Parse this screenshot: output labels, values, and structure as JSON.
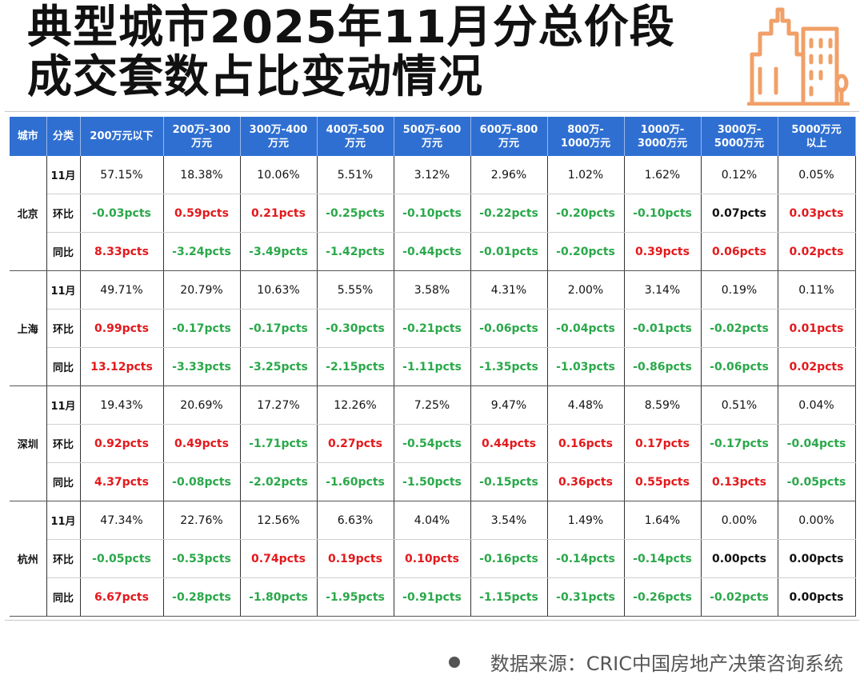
{
  "title": {
    "line1": "典型城市2025年11月分总价段",
    "line2": "成交套数占比变动情况"
  },
  "logo": {
    "icon": "buildings-icon",
    "color": "#f0a068"
  },
  "table": {
    "headers": [
      "城市",
      "分类",
      "200万元以下",
      "200万-300\n万元",
      "300万-400\n万元",
      "400万-500\n万元",
      "500万-600\n万元",
      "600万-800\n万元",
      "800万-\n1000万元",
      "1000万-\n3000万元",
      "3000万-\n5000万元",
      "5000万元\n以上"
    ],
    "colors": {
      "header_bg": "#2f6fd1",
      "up": "#e3191c",
      "down": "#2aa84a"
    },
    "cities": [
      {
        "name": "北京",
        "rows": [
          {
            "label": "11月",
            "cells": [
              {
                "v": "57.15%",
                "t": "plain"
              },
              {
                "v": "18.38%",
                "t": "plain"
              },
              {
                "v": "10.06%",
                "t": "plain"
              },
              {
                "v": "5.51%",
                "t": "plain"
              },
              {
                "v": "3.12%",
                "t": "plain"
              },
              {
                "v": "2.96%",
                "t": "plain"
              },
              {
                "v": "1.02%",
                "t": "plain"
              },
              {
                "v": "1.62%",
                "t": "plain"
              },
              {
                "v": "0.12%",
                "t": "plain"
              },
              {
                "v": "0.05%",
                "t": "plain"
              }
            ]
          },
          {
            "label": "环比",
            "cells": [
              {
                "v": "-0.03pcts",
                "t": "neg"
              },
              {
                "v": "0.59pcts",
                "t": "pos"
              },
              {
                "v": "0.21pcts",
                "t": "pos"
              },
              {
                "v": "-0.25pcts",
                "t": "neg"
              },
              {
                "v": "-0.10pcts",
                "t": "neg"
              },
              {
                "v": "-0.22pcts",
                "t": "neg"
              },
              {
                "v": "-0.20pcts",
                "t": "neg"
              },
              {
                "v": "-0.10pcts",
                "t": "neg"
              },
              {
                "v": "0.07pcts",
                "t": "neu"
              },
              {
                "v": "0.03pcts",
                "t": "pos"
              }
            ]
          },
          {
            "label": "同比",
            "cells": [
              {
                "v": "8.33pcts",
                "t": "pos"
              },
              {
                "v": "-3.24pcts",
                "t": "neg"
              },
              {
                "v": "-3.49pcts",
                "t": "neg"
              },
              {
                "v": "-1.42pcts",
                "t": "neg"
              },
              {
                "v": "-0.44pcts",
                "t": "neg"
              },
              {
                "v": "-0.01pcts",
                "t": "neg"
              },
              {
                "v": "-0.20pcts",
                "t": "neg"
              },
              {
                "v": "0.39pcts",
                "t": "pos"
              },
              {
                "v": "0.06pcts",
                "t": "pos"
              },
              {
                "v": "0.02pcts",
                "t": "pos"
              }
            ]
          }
        ]
      },
      {
        "name": "上海",
        "rows": [
          {
            "label": "11月",
            "cells": [
              {
                "v": "49.71%",
                "t": "plain"
              },
              {
                "v": "20.79%",
                "t": "plain"
              },
              {
                "v": "10.63%",
                "t": "plain"
              },
              {
                "v": "5.55%",
                "t": "plain"
              },
              {
                "v": "3.58%",
                "t": "plain"
              },
              {
                "v": "4.31%",
                "t": "plain"
              },
              {
                "v": "2.00%",
                "t": "plain"
              },
              {
                "v": "3.14%",
                "t": "plain"
              },
              {
                "v": "0.19%",
                "t": "plain"
              },
              {
                "v": "0.11%",
                "t": "plain"
              }
            ]
          },
          {
            "label": "环比",
            "cells": [
              {
                "v": "0.99pcts",
                "t": "pos"
              },
              {
                "v": "-0.17pcts",
                "t": "neg"
              },
              {
                "v": "-0.17pcts",
                "t": "neg"
              },
              {
                "v": "-0.30pcts",
                "t": "neg"
              },
              {
                "v": "-0.21pcts",
                "t": "neg"
              },
              {
                "v": "-0.06pcts",
                "t": "neg"
              },
              {
                "v": "-0.04pcts",
                "t": "neg"
              },
              {
                "v": "-0.01pcts",
                "t": "neg"
              },
              {
                "v": "-0.02pcts",
                "t": "neg"
              },
              {
                "v": "0.01pcts",
                "t": "pos"
              }
            ]
          },
          {
            "label": "同比",
            "cells": [
              {
                "v": "13.12pcts",
                "t": "pos"
              },
              {
                "v": "-3.33pcts",
                "t": "neg"
              },
              {
                "v": "-3.25pcts",
                "t": "neg"
              },
              {
                "v": "-2.15pcts",
                "t": "neg"
              },
              {
                "v": "-1.11pcts",
                "t": "neg"
              },
              {
                "v": "-1.35pcts",
                "t": "neg"
              },
              {
                "v": "-1.03pcts",
                "t": "neg"
              },
              {
                "v": "-0.86pcts",
                "t": "neg"
              },
              {
                "v": "-0.06pcts",
                "t": "neg"
              },
              {
                "v": "0.02pcts",
                "t": "pos"
              }
            ]
          }
        ]
      },
      {
        "name": "深圳",
        "rows": [
          {
            "label": "11月",
            "cells": [
              {
                "v": "19.43%",
                "t": "plain"
              },
              {
                "v": "20.69%",
                "t": "plain"
              },
              {
                "v": "17.27%",
                "t": "plain"
              },
              {
                "v": "12.26%",
                "t": "plain"
              },
              {
                "v": "7.25%",
                "t": "plain"
              },
              {
                "v": "9.47%",
                "t": "plain"
              },
              {
                "v": "4.48%",
                "t": "plain"
              },
              {
                "v": "8.59%",
                "t": "plain"
              },
              {
                "v": "0.51%",
                "t": "plain"
              },
              {
                "v": "0.04%",
                "t": "plain"
              }
            ]
          },
          {
            "label": "环比",
            "cells": [
              {
                "v": "0.92pcts",
                "t": "pos"
              },
              {
                "v": "0.49pcts",
                "t": "pos"
              },
              {
                "v": "-1.71pcts",
                "t": "neg"
              },
              {
                "v": "0.27pcts",
                "t": "pos"
              },
              {
                "v": "-0.54pcts",
                "t": "neg"
              },
              {
                "v": "0.44pcts",
                "t": "pos"
              },
              {
                "v": "0.16pcts",
                "t": "pos"
              },
              {
                "v": "0.17pcts",
                "t": "pos"
              },
              {
                "v": "-0.17pcts",
                "t": "neg"
              },
              {
                "v": "-0.04pcts",
                "t": "neg"
              }
            ]
          },
          {
            "label": "同比",
            "cells": [
              {
                "v": "4.37pcts",
                "t": "pos"
              },
              {
                "v": "-0.08pcts",
                "t": "neg"
              },
              {
                "v": "-2.02pcts",
                "t": "neg"
              },
              {
                "v": "-1.60pcts",
                "t": "neg"
              },
              {
                "v": "-1.50pcts",
                "t": "neg"
              },
              {
                "v": "-0.15pcts",
                "t": "neg"
              },
              {
                "v": "0.36pcts",
                "t": "pos"
              },
              {
                "v": "0.55pcts",
                "t": "pos"
              },
              {
                "v": "0.13pcts",
                "t": "pos"
              },
              {
                "v": "-0.05pcts",
                "t": "neg"
              }
            ]
          }
        ]
      },
      {
        "name": "杭州",
        "rows": [
          {
            "label": "11月",
            "cells": [
              {
                "v": "47.34%",
                "t": "plain"
              },
              {
                "v": "22.76%",
                "t": "plain"
              },
              {
                "v": "12.56%",
                "t": "plain"
              },
              {
                "v": "6.63%",
                "t": "plain"
              },
              {
                "v": "4.04%",
                "t": "plain"
              },
              {
                "v": "3.54%",
                "t": "plain"
              },
              {
                "v": "1.49%",
                "t": "plain"
              },
              {
                "v": "1.64%",
                "t": "plain"
              },
              {
                "v": "0.00%",
                "t": "plain"
              },
              {
                "v": "0.00%",
                "t": "plain"
              }
            ]
          },
          {
            "label": "环比",
            "cells": [
              {
                "v": "-0.05pcts",
                "t": "neg"
              },
              {
                "v": "-0.53pcts",
                "t": "neg"
              },
              {
                "v": "0.74pcts",
                "t": "pos"
              },
              {
                "v": "0.19pcts",
                "t": "pos"
              },
              {
                "v": "0.10pcts",
                "t": "pos"
              },
              {
                "v": "-0.16pcts",
                "t": "neg"
              },
              {
                "v": "-0.14pcts",
                "t": "neg"
              },
              {
                "v": "-0.14pcts",
                "t": "neg"
              },
              {
                "v": "0.00pcts",
                "t": "neu"
              },
              {
                "v": "0.00pcts",
                "t": "neu"
              }
            ]
          },
          {
            "label": "同比",
            "cells": [
              {
                "v": "6.67pcts",
                "t": "pos"
              },
              {
                "v": "-0.28pcts",
                "t": "neg"
              },
              {
                "v": "-1.80pcts",
                "t": "neg"
              },
              {
                "v": "-1.95pcts",
                "t": "neg"
              },
              {
                "v": "-0.91pcts",
                "t": "neg"
              },
              {
                "v": "-1.15pcts",
                "t": "neg"
              },
              {
                "v": "-0.31pcts",
                "t": "neg"
              },
              {
                "v": "-0.26pcts",
                "t": "neg"
              },
              {
                "v": "-0.02pcts",
                "t": "neg"
              },
              {
                "v": "0.00pcts",
                "t": "neu"
              }
            ]
          }
        ]
      }
    ]
  },
  "source": "数据来源：CRIC中国房地产决策咨询系统"
}
